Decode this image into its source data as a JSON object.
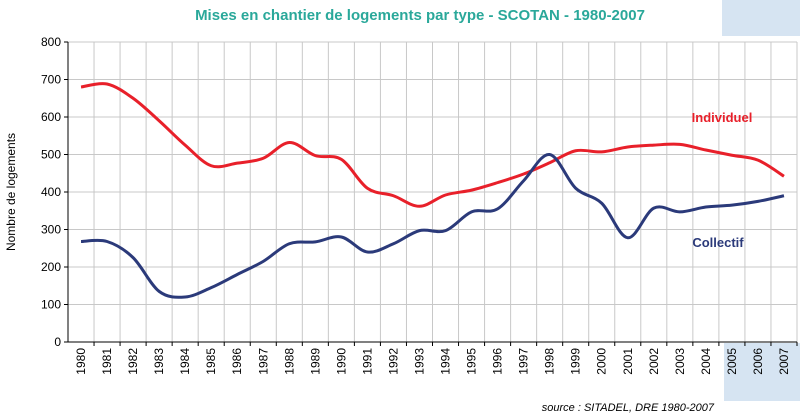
{
  "chart_data": {
    "type": "line",
    "title": "Mises en chantier de logements par type - SCOTAN - 1980-2007",
    "ylabel": "Nombre de logements",
    "source": "source : SITADEL, DRE 1980-2007",
    "categories": [
      "1980",
      "1981",
      "1982",
      "1983",
      "1984",
      "1985",
      "1986",
      "1987",
      "1988",
      "1989",
      "1990",
      "1991",
      "1992",
      "1993",
      "1994",
      "1995",
      "1996",
      "1997",
      "1998",
      "1999",
      "2000",
      "2001",
      "2002",
      "2003",
      "2004",
      "2005",
      "2006",
      "2007"
    ],
    "series": [
      {
        "name": "Individuel",
        "color": "#e8202a",
        "values": [
          680,
          688,
          650,
          590,
          525,
          470,
          477,
          490,
          532,
          497,
          487,
          410,
          390,
          362,
          392,
          405,
          425,
          448,
          478,
          510,
          507,
          520,
          525,
          527,
          512,
          498,
          485,
          442
        ]
      },
      {
        "name": "Collectif",
        "color": "#2b3a7a",
        "values": [
          268,
          268,
          225,
          135,
          120,
          145,
          180,
          215,
          262,
          267,
          280,
          240,
          262,
          297,
          297,
          347,
          355,
          430,
          500,
          410,
          370,
          278,
          357,
          347,
          360,
          365,
          375,
          390
        ]
      }
    ],
    "ylim": [
      0,
      800
    ],
    "yticks": [
      0,
      100,
      200,
      300,
      400,
      500,
      600,
      700,
      800
    ],
    "grid": true
  }
}
